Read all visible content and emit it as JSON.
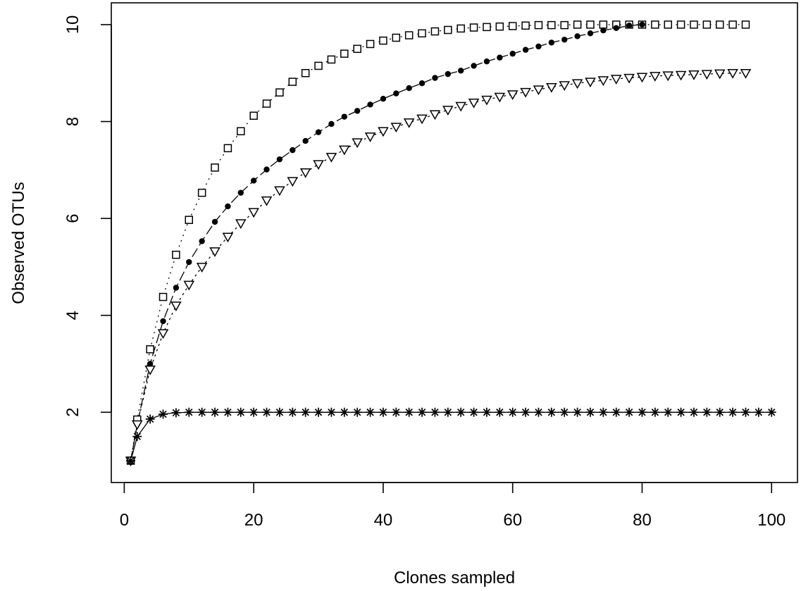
{
  "chart_data": {
    "type": "scatter",
    "title": "",
    "xlabel": "Clones sampled",
    "ylabel": "Observed OTUs",
    "xlim": [
      -2,
      104
    ],
    "ylim": [
      0.55,
      10.45
    ],
    "xticks": [
      0,
      20,
      40,
      60,
      80,
      100
    ],
    "yticks": [
      2,
      4,
      6,
      8,
      10
    ],
    "xtick_labels": [
      "0",
      "20",
      "40",
      "60",
      "80",
      "100"
    ],
    "ytick_labels": [
      "2",
      "4",
      "6",
      "8",
      "10"
    ],
    "grid": false,
    "legend": "none",
    "series": [
      {
        "marker": "open-square",
        "color": "#000000",
        "x": [
          1,
          2,
          4,
          6,
          8,
          10,
          12,
          14,
          16,
          18,
          20,
          22,
          24,
          26,
          28,
          30,
          32,
          34,
          36,
          38,
          40,
          42,
          44,
          46,
          48,
          50,
          52,
          54,
          56,
          58,
          60,
          62,
          64,
          66,
          68,
          70,
          72,
          74,
          76,
          78,
          80,
          82,
          84,
          86,
          88,
          90,
          92,
          94,
          96
        ],
        "y": [
          1.0,
          1.85,
          3.3,
          4.38,
          5.25,
          5.97,
          6.53,
          7.05,
          7.45,
          7.8,
          8.12,
          8.37,
          8.6,
          8.82,
          9.0,
          9.15,
          9.28,
          9.4,
          9.5,
          9.6,
          9.67,
          9.73,
          9.78,
          9.82,
          9.86,
          9.89,
          9.92,
          9.94,
          9.95,
          9.96,
          9.97,
          9.98,
          9.99,
          9.99,
          9.99,
          10.0,
          10.0,
          10.0,
          10.0,
          10.0,
          10.0,
          10.0,
          10.0,
          10.0,
          10.0,
          10.0,
          10.0,
          10.0,
          10.0
        ]
      },
      {
        "marker": "filled-circle",
        "color": "#000000",
        "x": [
          1,
          2,
          4,
          6,
          8,
          10,
          12,
          14,
          16,
          18,
          20,
          22,
          24,
          26,
          28,
          30,
          32,
          34,
          36,
          38,
          40,
          42,
          44,
          46,
          48,
          50,
          52,
          54,
          56,
          58,
          60,
          62,
          64,
          66,
          68,
          70,
          72,
          74,
          76,
          78,
          80
        ],
        "y": [
          1.0,
          1.75,
          3.0,
          3.88,
          4.57,
          5.1,
          5.53,
          5.93,
          6.25,
          6.53,
          6.78,
          7.01,
          7.22,
          7.41,
          7.6,
          7.78,
          7.95,
          8.1,
          8.22,
          8.35,
          8.47,
          8.58,
          8.69,
          8.79,
          8.9,
          8.98,
          9.05,
          9.15,
          9.24,
          9.32,
          9.4,
          9.48,
          9.55,
          9.63,
          9.69,
          9.76,
          9.82,
          9.88,
          9.93,
          9.98,
          10.0
        ]
      },
      {
        "marker": "open-triangle-down",
        "color": "#000000",
        "x": [
          1,
          2,
          4,
          6,
          8,
          10,
          12,
          14,
          16,
          18,
          20,
          22,
          24,
          26,
          28,
          30,
          32,
          34,
          36,
          38,
          40,
          42,
          44,
          46,
          48,
          50,
          52,
          54,
          56,
          58,
          60,
          62,
          64,
          66,
          68,
          70,
          72,
          74,
          76,
          78,
          80,
          82,
          84,
          86,
          88,
          90,
          92,
          94,
          96
        ],
        "y": [
          1.0,
          1.75,
          2.88,
          3.63,
          4.2,
          4.63,
          5.0,
          5.32,
          5.62,
          5.9,
          6.13,
          6.37,
          6.58,
          6.77,
          6.95,
          7.12,
          7.27,
          7.42,
          7.57,
          7.69,
          7.8,
          7.89,
          7.98,
          8.06,
          8.15,
          8.24,
          8.32,
          8.39,
          8.45,
          8.51,
          8.56,
          8.61,
          8.66,
          8.71,
          8.75,
          8.79,
          8.82,
          8.85,
          8.88,
          8.9,
          8.92,
          8.94,
          8.95,
          8.96,
          8.97,
          8.98,
          8.99,
          9.0,
          9.0
        ]
      },
      {
        "marker": "asterisk",
        "color": "#000000",
        "x": [
          1,
          2,
          4,
          6,
          8,
          10,
          12,
          14,
          16,
          18,
          20,
          22,
          24,
          26,
          28,
          30,
          32,
          34,
          36,
          38,
          40,
          42,
          44,
          46,
          48,
          50,
          52,
          54,
          56,
          58,
          60,
          62,
          64,
          66,
          68,
          70,
          72,
          74,
          76,
          78,
          80,
          82,
          84,
          86,
          88,
          90,
          92,
          94,
          96,
          98,
          100
        ],
        "y": [
          1.0,
          1.5,
          1.86,
          1.96,
          1.99,
          2.0,
          2.0,
          2.0,
          2.0,
          2.0,
          2.0,
          2.0,
          2.0,
          2.0,
          2.0,
          2.0,
          2.0,
          2.0,
          2.0,
          2.0,
          2.0,
          2.0,
          2.0,
          2.0,
          2.0,
          2.0,
          2.0,
          2.0,
          2.0,
          2.0,
          2.0,
          2.0,
          2.0,
          2.0,
          2.0,
          2.0,
          2.0,
          2.0,
          2.0,
          2.0,
          2.0,
          2.0,
          2.0,
          2.0,
          2.0,
          2.0,
          2.0,
          2.0,
          2.0,
          2.0,
          2.0
        ]
      }
    ]
  }
}
